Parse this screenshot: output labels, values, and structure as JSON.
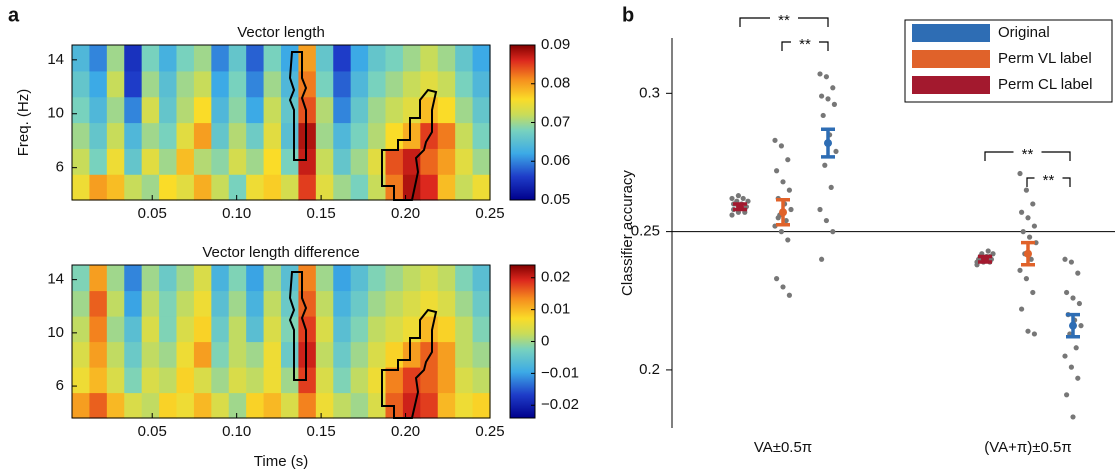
{
  "chart_data": [
    {
      "type": "heatmap",
      "title": "Vector length",
      "ylabel": "Freq. (Hz)",
      "xlim": [
        0.0025,
        0.25
      ],
      "xticks": [
        0.05,
        {
          "value": 0.1,
          "label": "0.10"
        },
        0.15,
        {
          "value": 0.2,
          "label": "0.20"
        },
        0.25
      ],
      "ylim": [
        3.6,
        15.1
      ],
      "yticks": [
        6,
        10,
        14
      ],
      "clim": [
        0.05,
        0.09
      ],
      "cticks": [
        0.05,
        0.06,
        0.07,
        0.08,
        0.09
      ],
      "z": [
        [
          0.075,
          0.08,
          0.078,
          0.072,
          0.07,
          0.076,
          0.074,
          0.079,
          0.072,
          0.068,
          0.075,
          0.077,
          0.073,
          0.085,
          0.074,
          0.07,
          0.068,
          0.072,
          0.082,
          0.088,
          0.086,
          0.078,
          0.072,
          0.075
        ],
        [
          0.072,
          0.068,
          0.075,
          0.066,
          0.074,
          0.07,
          0.078,
          0.071,
          0.069,
          0.073,
          0.07,
          0.076,
          0.068,
          0.087,
          0.072,
          0.066,
          0.07,
          0.074,
          0.084,
          0.087,
          0.083,
          0.08,
          0.074,
          0.07
        ],
        [
          0.07,
          0.066,
          0.072,
          0.064,
          0.07,
          0.068,
          0.074,
          0.08,
          0.066,
          0.071,
          0.067,
          0.074,
          0.065,
          0.088,
          0.07,
          0.064,
          0.068,
          0.071,
          0.076,
          0.079,
          0.085,
          0.082,
          0.072,
          0.068
        ],
        [
          0.068,
          0.064,
          0.07,
          0.06,
          0.073,
          0.066,
          0.071,
          0.076,
          0.064,
          0.069,
          0.062,
          0.072,
          0.066,
          0.084,
          0.071,
          0.06,
          0.066,
          0.07,
          0.072,
          0.074,
          0.078,
          0.076,
          0.07,
          0.066
        ],
        [
          0.066,
          0.062,
          0.072,
          0.056,
          0.07,
          0.065,
          0.07,
          0.072,
          0.062,
          0.068,
          0.06,
          0.07,
          0.064,
          0.082,
          0.068,
          0.058,
          0.064,
          0.068,
          0.07,
          0.072,
          0.074,
          0.072,
          0.068,
          0.064
        ],
        [
          0.064,
          0.06,
          0.07,
          0.055,
          0.068,
          0.063,
          0.068,
          0.07,
          0.06,
          0.066,
          0.058,
          0.068,
          0.062,
          0.08,
          0.066,
          0.056,
          0.062,
          0.066,
          0.068,
          0.07,
          0.072,
          0.07,
          0.066,
          0.062
        ]
      ]
    },
    {
      "type": "heatmap",
      "title": "Vector length difference",
      "xlabel": "Time (s)",
      "xlim": [
        0.0025,
        0.25
      ],
      "xticks": [
        0.05,
        {
          "value": 0.1,
          "label": "0.10"
        },
        0.15,
        {
          "value": 0.2,
          "label": "0.20"
        },
        0.25
      ],
      "ylim": [
        3.6,
        15.1
      ],
      "yticks": [
        6,
        10,
        14
      ],
      "clim": [
        -0.024,
        0.024
      ],
      "cticks": [
        {
          "value": -0.02,
          "label": "−0.02"
        },
        {
          "value": -0.01,
          "label": "−0.01"
        },
        0,
        0.01,
        0.02
      ],
      "z": [
        [
          0.012,
          0.016,
          0.01,
          0.004,
          0.002,
          0.008,
          0.006,
          0.01,
          0.004,
          0.0,
          0.008,
          0.01,
          0.004,
          0.014,
          0.006,
          0.002,
          0.0,
          0.004,
          0.016,
          0.02,
          0.018,
          0.01,
          0.006,
          0.008
        ],
        [
          0.006,
          0.01,
          0.004,
          -0.002,
          0.004,
          0.002,
          0.008,
          0.004,
          0.0,
          0.004,
          0.002,
          0.006,
          0.0,
          0.018,
          0.004,
          -0.002,
          0.002,
          0.006,
          0.014,
          0.018,
          0.016,
          0.012,
          0.004,
          0.002
        ],
        [
          0.004,
          0.012,
          0.002,
          -0.004,
          0.002,
          0.0,
          0.006,
          0.012,
          -0.002,
          0.002,
          0.0,
          0.006,
          -0.004,
          0.02,
          0.002,
          -0.004,
          0.0,
          0.004,
          0.008,
          0.012,
          0.016,
          0.012,
          0.002,
          0.0
        ],
        [
          0.002,
          0.014,
          0.0,
          -0.006,
          0.004,
          -0.002,
          0.004,
          0.008,
          -0.004,
          0.002,
          -0.006,
          0.004,
          -0.002,
          0.018,
          0.004,
          -0.006,
          -0.002,
          0.002,
          0.004,
          0.006,
          0.01,
          0.008,
          0.002,
          -0.002
        ],
        [
          0.0,
          0.016,
          0.002,
          -0.01,
          0.002,
          -0.002,
          0.002,
          0.006,
          -0.006,
          0.0,
          -0.008,
          0.002,
          -0.004,
          0.016,
          0.002,
          -0.008,
          -0.004,
          0.0,
          0.002,
          0.004,
          0.006,
          0.004,
          0.0,
          -0.004
        ],
        [
          -0.002,
          0.012,
          0.0,
          -0.012,
          0.0,
          -0.004,
          0.0,
          0.004,
          -0.008,
          -0.002,
          -0.01,
          0.0,
          -0.006,
          0.014,
          0.0,
          -0.01,
          -0.006,
          -0.002,
          0.0,
          0.002,
          0.004,
          0.002,
          -0.002,
          -0.006
        ]
      ]
    },
    {
      "type": "strip",
      "ylabel": "Classifier accuracy",
      "categories": [
        "VA±0.5π",
        "(VA+π)±0.5π"
      ],
      "ylim": [
        0.179,
        0.32
      ],
      "yticks": [
        0.2,
        0.25,
        0.3
      ],
      "legend": "upper right",
      "annotations": [
        "**",
        "**",
        "**",
        "**"
      ],
      "series": [
        {
          "name": "Original",
          "color": "#2e6db4",
          "values": [
            0.282,
            0.216
          ],
          "errors": [
            0.005,
            0.004
          ],
          "points": [
            [
              0.307,
              0.306,
              0.302,
              0.299,
              0.298,
              0.296,
              0.292,
              0.285,
              0.279,
              0.274,
              0.266,
              0.258,
              0.254,
              0.25,
              0.24
            ],
            [
              0.24,
              0.239,
              0.235,
              0.228,
              0.226,
              0.224,
              0.22,
              0.218,
              0.216,
              0.213,
              0.208,
              0.205,
              0.201,
              0.197,
              0.191,
              0.183
            ]
          ]
        },
        {
          "name": "Perm VL label",
          "color": "#e0622a",
          "values": [
            0.257,
            0.242
          ],
          "errors": [
            0.0045,
            0.004
          ],
          "points": [
            [
              0.283,
              0.281,
              0.276,
              0.272,
              0.268,
              0.265,
              0.262,
              0.26,
              0.258,
              0.256,
              0.254,
              0.252,
              0.25,
              0.247,
              0.233,
              0.23,
              0.227,
              0.255
            ],
            [
              0.271,
              0.265,
              0.26,
              0.257,
              0.255,
              0.252,
              0.25,
              0.248,
              0.246,
              0.242,
              0.24,
              0.236,
              0.233,
              0.228,
              0.222,
              0.214,
              0.213
            ]
          ]
        },
        {
          "name": "Perm CL label",
          "color": "#a3192e",
          "values": [
            0.259,
            0.24
          ],
          "errors": [
            0.001,
            0.001
          ],
          "points": [
            [
              0.256,
              0.257,
              0.258,
              0.258,
              0.259,
              0.259,
              0.26,
              0.26,
              0.261,
              0.261,
              0.262,
              0.262,
              0.263,
              0.257,
              0.26,
              0.259
            ],
            [
              0.238,
              0.239,
              0.239,
              0.24,
              0.24,
              0.24,
              0.241,
              0.241,
              0.242,
              0.242,
              0.243,
              0.239,
              0.24,
              0.241
            ]
          ]
        }
      ]
    }
  ]
}
